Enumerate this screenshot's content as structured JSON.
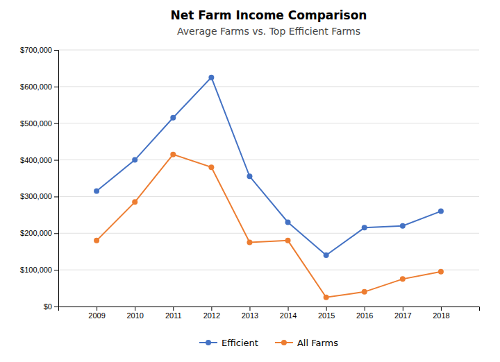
{
  "chart_data": {
    "type": "line",
    "title": "Net Farm Income Comparison",
    "subtitle": "Average Farms vs. Top Efficient Farms",
    "x": [
      2009,
      2010,
      2011,
      2012,
      2013,
      2014,
      2015,
      2016,
      2017,
      2018
    ],
    "series": [
      {
        "name": "Efficient",
        "color": "#4472C4",
        "marker": "o",
        "values": [
          315000,
          400000,
          515000,
          625000,
          355000,
          230000,
          140000,
          215000,
          220000,
          260000
        ]
      },
      {
        "name": "All Farms",
        "color": "#ED7D31",
        "marker": "o",
        "values": [
          180000,
          285000,
          415000,
          380000,
          175000,
          180000,
          25000,
          40000,
          75000,
          95000
        ]
      }
    ],
    "xlim": [
      2008,
      2019
    ],
    "xticks": [
      2009,
      2010,
      2011,
      2012,
      2013,
      2014,
      2015,
      2016,
      2017,
      2018
    ],
    "ylim": [
      0,
      700000
    ],
    "yticks": [
      {
        "value": 0,
        "label": "$0"
      },
      {
        "value": 100000,
        "label": "$100,000"
      },
      {
        "value": 200000,
        "label": "$200,000"
      },
      {
        "value": 300000,
        "label": "$300,000"
      },
      {
        "value": 400000,
        "label": "$400,000"
      },
      {
        "value": 500000,
        "label": "$500,000"
      },
      {
        "value": 600000,
        "label": "$600,000"
      },
      {
        "value": 700000,
        "label": "$700,000"
      }
    ],
    "grid": true,
    "legend": "bottom"
  }
}
